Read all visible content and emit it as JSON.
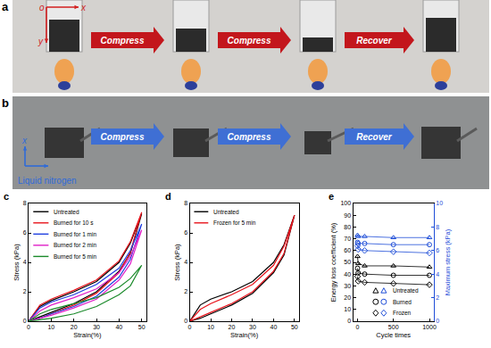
{
  "photo_panels": [
    {
      "label": "a",
      "steps": [
        "Compress",
        "Compress",
        "Recover"
      ],
      "axes": [
        "o",
        "x",
        "y"
      ]
    },
    {
      "label": "b",
      "steps": [
        "Compress",
        "Compress",
        "Recover"
      ],
      "axes": [
        "x"
      ],
      "medium": "Liquid nitrogen"
    }
  ],
  "chart_data": [
    {
      "type": "line",
      "annotations": [
        "c"
      ],
      "xlabel": "Strain(%)",
      "ylabel": "Stress (kPa)",
      "xlim": [
        0,
        52
      ],
      "xticks": [
        0,
        10,
        20,
        30,
        40,
        50
      ],
      "ylim": [
        0,
        8
      ],
      "yticks": [
        0,
        2,
        4,
        6,
        8
      ],
      "grid": false,
      "legend": "upper left",
      "series": [
        {
          "name": "Untreated",
          "color": "#000000",
          "x": [
            0,
            5,
            10,
            20,
            30,
            40,
            45,
            50,
            45,
            40,
            30,
            20,
            10,
            5,
            0
          ],
          "values": [
            0,
            1.0,
            1.4,
            2.0,
            2.7,
            4.0,
            5.3,
            7.3,
            4.6,
            3.4,
            2.0,
            1.2,
            0.6,
            0.3,
            0
          ]
        },
        {
          "name": "Burned for 10 s",
          "color": "#e8141c",
          "x": [
            0,
            5,
            10,
            20,
            30,
            40,
            45,
            50,
            45,
            40,
            30,
            20,
            10,
            5,
            0
          ],
          "values": [
            0,
            1.1,
            1.5,
            2.1,
            2.8,
            4.1,
            5.4,
            7.4,
            4.7,
            3.3,
            1.9,
            1.1,
            0.5,
            0.2,
            0
          ]
        },
        {
          "name": "Burned for 1 min",
          "color": "#1f3fe0",
          "x": [
            0,
            5,
            10,
            20,
            30,
            40,
            45,
            50,
            45,
            40,
            30,
            20,
            10,
            5,
            0
          ],
          "values": [
            0,
            0.9,
            1.3,
            1.8,
            2.5,
            3.6,
            4.8,
            6.6,
            4.2,
            3.0,
            1.7,
            1.0,
            0.5,
            0.2,
            0
          ]
        },
        {
          "name": "Burned for 2 min",
          "color": "#e020c8",
          "x": [
            0,
            5,
            10,
            20,
            30,
            40,
            45,
            50,
            45,
            40,
            30,
            20,
            10,
            5,
            0
          ],
          "values": [
            0,
            0.7,
            1.1,
            1.6,
            2.2,
            3.3,
            4.4,
            6.2,
            3.9,
            2.8,
            1.5,
            0.9,
            0.4,
            0.2,
            0
          ]
        },
        {
          "name": "Burned for 5 min",
          "color": "#1a8a2a",
          "x": [
            0,
            5,
            10,
            20,
            30,
            40,
            45,
            50,
            45,
            40,
            30,
            20,
            10,
            5,
            0
          ],
          "values": [
            0,
            0.5,
            0.8,
            1.2,
            1.6,
            2.3,
            2.9,
            3.8,
            2.4,
            1.8,
            1.0,
            0.5,
            0.2,
            0.1,
            0
          ]
        }
      ]
    },
    {
      "type": "line",
      "annotations": [
        "d"
      ],
      "xlabel": "Strain(%)",
      "ylabel": "Stress (kPa)",
      "xlim": [
        0,
        52
      ],
      "xticks": [
        0,
        10,
        20,
        30,
        40,
        50
      ],
      "ylim": [
        0,
        8
      ],
      "yticks": [
        0,
        2,
        4,
        6,
        8
      ],
      "grid": false,
      "legend": "upper left",
      "series": [
        {
          "name": "Untreated",
          "color": "#000000",
          "x": [
            0,
            5,
            10,
            20,
            30,
            40,
            45,
            50,
            45,
            40,
            30,
            20,
            10,
            5,
            0
          ],
          "values": [
            0,
            1.1,
            1.5,
            2.0,
            2.7,
            4.0,
            5.2,
            7.2,
            4.5,
            3.3,
            1.9,
            1.1,
            0.5,
            0.2,
            0
          ]
        },
        {
          "name": "Frozen for 5 min",
          "color": "#e8141c",
          "x": [
            0,
            5,
            10,
            20,
            30,
            40,
            45,
            50,
            45,
            40,
            30,
            20,
            10,
            5,
            0
          ],
          "values": [
            0,
            0.8,
            1.2,
            1.8,
            2.5,
            3.8,
            5.1,
            7.2,
            4.6,
            3.4,
            2.0,
            1.2,
            0.6,
            0.3,
            0
          ]
        }
      ]
    },
    {
      "type": "line",
      "annotations": [
        "e"
      ],
      "xlabel": "Cycle times",
      "ylabel": "Energy loss coefficient (%)",
      "y2label": "Maximum stress (kPa)",
      "x": [
        1,
        10,
        100,
        500,
        1000
      ],
      "xlim": [
        -60,
        1060
      ],
      "xticks": [
        0,
        500,
        1000
      ],
      "ylim": [
        0,
        100
      ],
      "yticks": [
        0,
        10,
        20,
        30,
        40,
        50,
        60,
        70,
        80,
        90,
        100
      ],
      "y2lim": [
        0,
        10
      ],
      "y2ticks": [
        0,
        2,
        4,
        6,
        8,
        10
      ],
      "grid": false,
      "legend": "lower center",
      "series": [
        {
          "name": "Untreated",
          "color": "#000000",
          "marker": "triangle-up-open",
          "values": [
            55,
            49,
            47,
            47,
            46
          ]
        },
        {
          "name": "Burned",
          "color": "#000000",
          "marker": "circle-open",
          "values": [
            45,
            41,
            40,
            39,
            39
          ]
        },
        {
          "name": "Frozen",
          "color": "#000000",
          "marker": "diamond-open",
          "values": [
            38,
            34,
            33,
            32,
            31
          ]
        },
        {
          "name": "Untreated",
          "color": "#1f4ed8",
          "marker": "triangle-up-open",
          "axis": "y2",
          "values": [
            7.3,
            7.2,
            7.2,
            7.1,
            7.1
          ]
        },
        {
          "name": "Burned",
          "color": "#1f4ed8",
          "marker": "circle-open",
          "axis": "y2",
          "values": [
            6.7,
            6.6,
            6.6,
            6.5,
            6.5
          ]
        },
        {
          "name": "Frozen",
          "color": "#1f4ed8",
          "marker": "diamond-open",
          "axis": "y2",
          "values": [
            6.4,
            6.1,
            6.0,
            5.9,
            5.8
          ]
        }
      ]
    }
  ]
}
